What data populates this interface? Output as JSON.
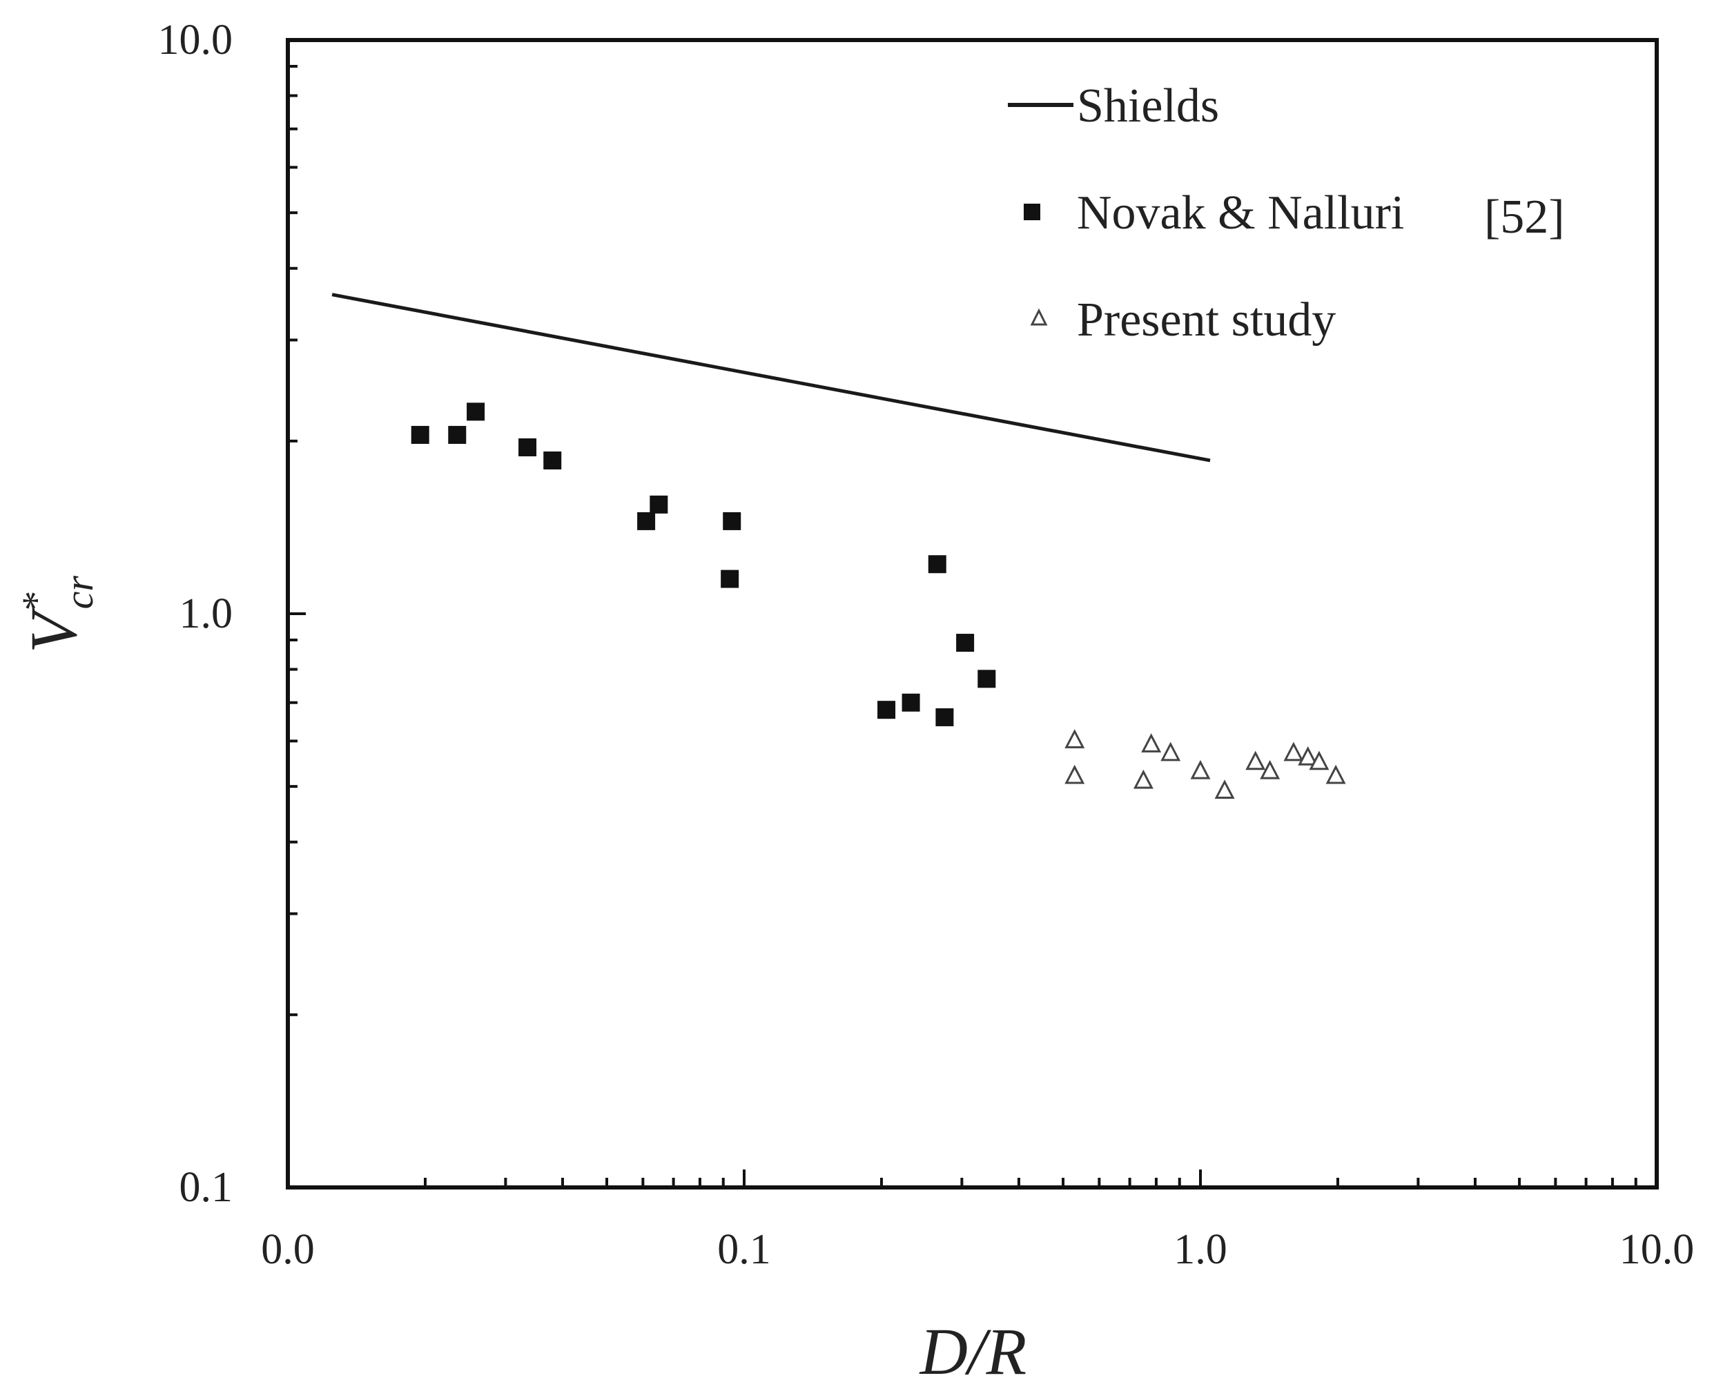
{
  "chart_data": {
    "type": "scatter",
    "title": "",
    "xlabel": "D/R",
    "ylabel": {
      "main": "V",
      "sup": "*",
      "sub": "cr"
    },
    "xscale": "log",
    "yscale": "log",
    "xlim": [
      0.01,
      10.0
    ],
    "ylim": [
      0.1,
      10.0
    ],
    "x_tick_labels": [
      {
        "value": 0.01,
        "label": "0.0"
      },
      {
        "value": 0.1,
        "label": "0.1"
      },
      {
        "value": 1.0,
        "label": "1.0"
      },
      {
        "value": 10.0,
        "label": "10.0"
      }
    ],
    "y_tick_labels": [
      {
        "value": 0.1,
        "label": "0.1"
      },
      {
        "value": 1.0,
        "label": "1.0"
      },
      {
        "value": 10.0,
        "label": "10.0"
      }
    ],
    "legend_position": "top-right",
    "series": [
      {
        "name": "Shields",
        "kind": "line",
        "color": "#1a1a1a",
        "points": [
          [
            0.0125,
            3.6
          ],
          [
            1.05,
            1.85
          ]
        ]
      },
      {
        "name": "Novak & Nalluri",
        "ref": "[52]",
        "kind": "filled-square",
        "color": "#111111",
        "points": [
          [
            0.0195,
            2.05
          ],
          [
            0.0235,
            2.05
          ],
          [
            0.0258,
            2.25
          ],
          [
            0.0335,
            1.95
          ],
          [
            0.038,
            1.85
          ],
          [
            0.061,
            1.45
          ],
          [
            0.065,
            1.55
          ],
          [
            0.094,
            1.45
          ],
          [
            0.093,
            1.15
          ],
          [
            0.205,
            0.68
          ],
          [
            0.232,
            0.7
          ],
          [
            0.265,
            1.22
          ],
          [
            0.275,
            0.66
          ],
          [
            0.305,
            0.89
          ],
          [
            0.34,
            0.77
          ]
        ]
      },
      {
        "name": "Present study",
        "kind": "open-triangle",
        "color": "#444444",
        "points": [
          [
            0.53,
            0.6
          ],
          [
            0.53,
            0.52
          ],
          [
            0.75,
            0.51
          ],
          [
            0.78,
            0.59
          ],
          [
            0.86,
            0.57
          ],
          [
            1.0,
            0.53
          ],
          [
            1.13,
            0.49
          ],
          [
            1.32,
            0.55
          ],
          [
            1.42,
            0.53
          ],
          [
            1.6,
            0.57
          ],
          [
            1.72,
            0.56
          ],
          [
            1.82,
            0.55
          ],
          [
            1.98,
            0.52
          ]
        ]
      }
    ]
  }
}
